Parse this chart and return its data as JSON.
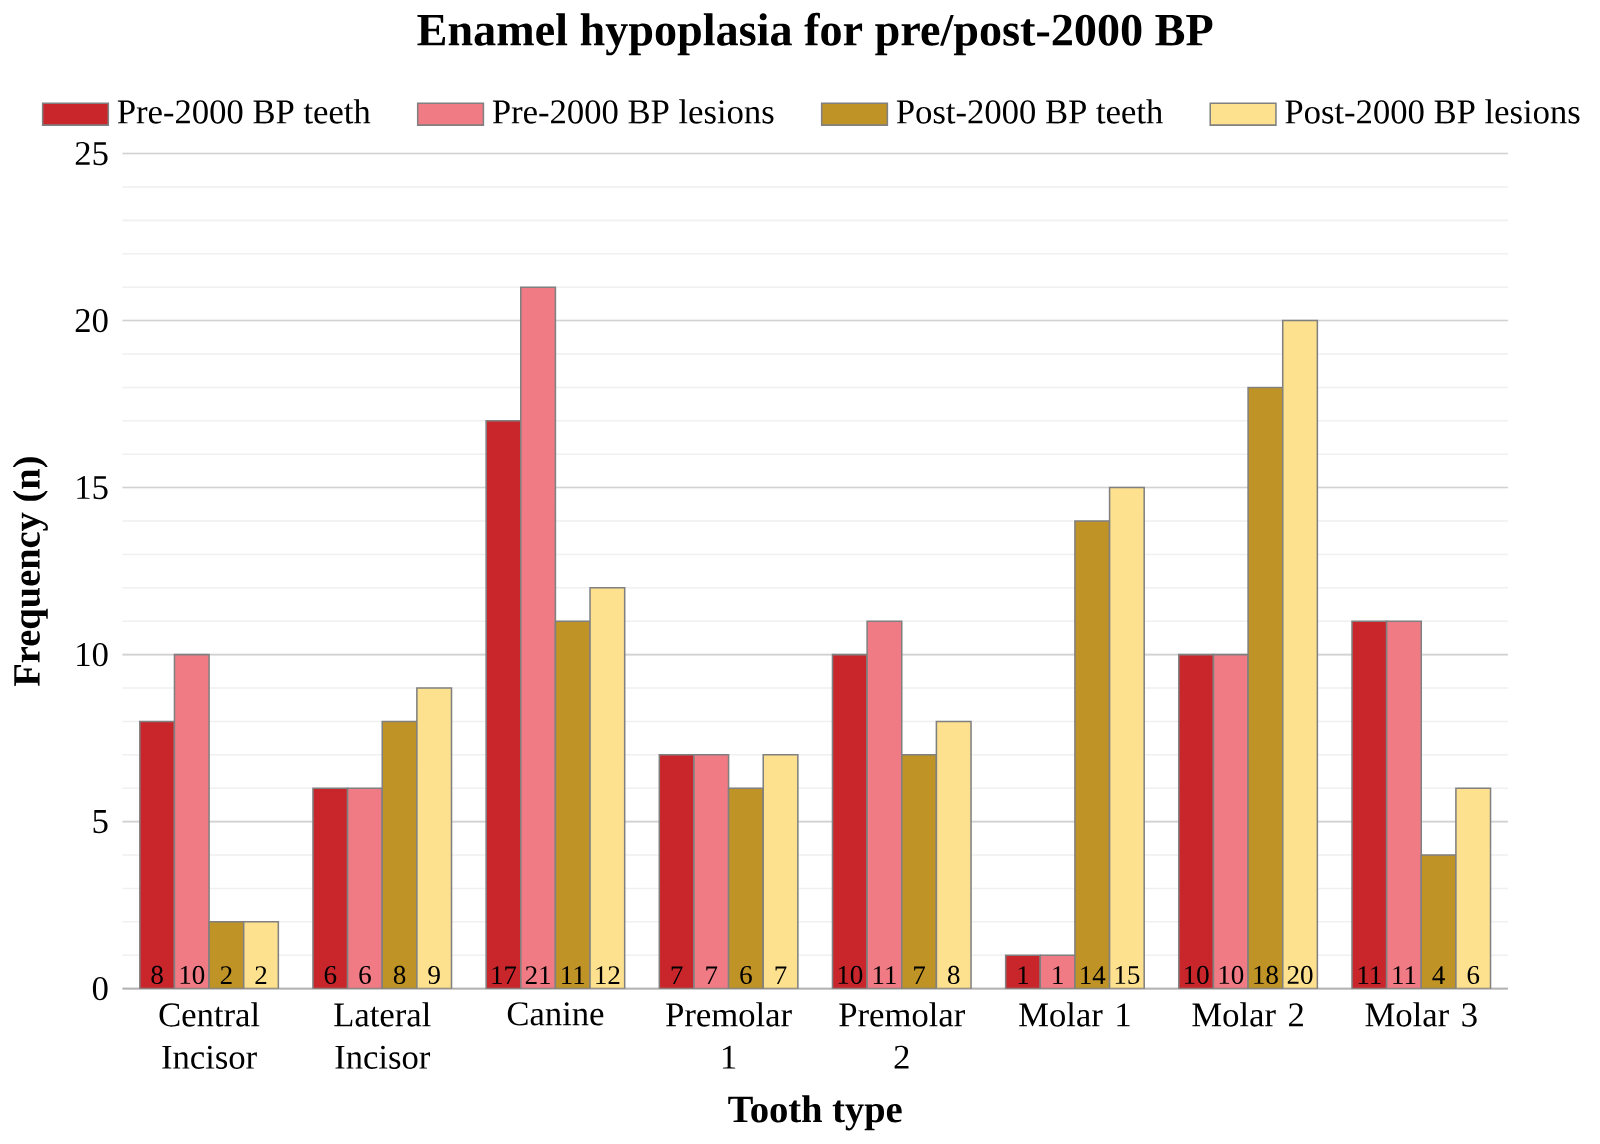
{
  "chart_data": {
    "type": "bar",
    "title": "Enamel hypoplasia for pre/post-2000 BP",
    "xlabel": "Tooth type",
    "ylabel": "Frequency (n)",
    "categories": [
      "Central Incisor",
      "Lateral Incisor",
      "Canine",
      "Premolar 1",
      "Premolar 2",
      "Molar 1",
      "Molar 2",
      "Molar 3"
    ],
    "series": [
      {
        "name": "Pre-2000 BP teeth",
        "color": "#c9262c",
        "values": [
          8,
          6,
          17,
          7,
          10,
          1,
          10,
          11
        ]
      },
      {
        "name": "Pre-2000 BP lesions",
        "color": "#f07b84",
        "values": [
          10,
          6,
          21,
          7,
          11,
          1,
          10,
          11
        ]
      },
      {
        "name": "Post-2000 BP teeth",
        "color": "#bf9326",
        "values": [
          2,
          8,
          11,
          6,
          7,
          14,
          18,
          4
        ]
      },
      {
        "name": "Post-2000 BP lesions",
        "color": "#fde18e",
        "values": [
          2,
          9,
          12,
          7,
          8,
          15,
          20,
          6
        ]
      }
    ],
    "ylim": [
      0,
      25
    ],
    "yticks": [
      0,
      5,
      10,
      15,
      20,
      25
    ],
    "grid": "y",
    "legend": "top",
    "data_labels": true
  }
}
